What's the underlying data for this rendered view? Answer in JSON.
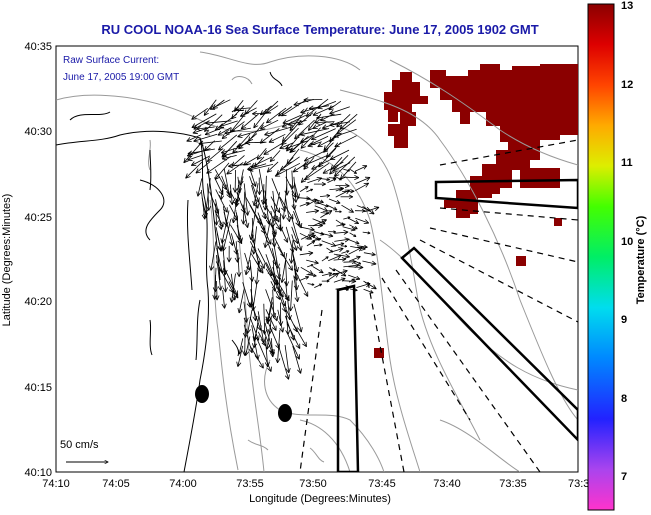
{
  "title": "RU COOL  NOAA-16  Sea Surface Temperature:  June 17, 2005 1902 GMT",
  "annotation": {
    "line1": "Raw Surface Current:",
    "line2": "June 17, 2005 19:00 GMT"
  },
  "scale_label": "50 cm/s",
  "axes": {
    "xlabel": "Longitude (Degrees:Minutes)",
    "ylabel": "Latitude (Degrees:Minutes)",
    "xticks": [
      "74:10",
      "74:05",
      "74:00",
      "73:55",
      "73:50",
      "73:45",
      "73:40",
      "73:35",
      "73:3"
    ],
    "yticks": [
      "40:35",
      "40:30",
      "40:25",
      "40:20",
      "40:15",
      "40:10"
    ]
  },
  "colorbar": {
    "label": "Temperature (°C)",
    "ticks": [
      "13",
      "12",
      "11",
      "10",
      "9",
      "8",
      "7"
    ],
    "min": 6.3,
    "max": 13
  },
  "colors": {
    "title": "#1a1aa8",
    "warm_sst": "#8b0000",
    "coast": "#000000",
    "bathymetry": "#9a9a9a"
  }
}
